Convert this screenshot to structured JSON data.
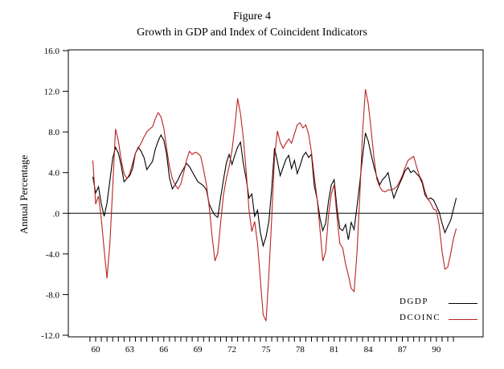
{
  "page": {
    "title": "Figure 4",
    "subtitle": "Growth in GDP and Index of Coincident Indicators"
  },
  "colors": {
    "dgdp_line": "#000000",
    "dcoinc_line": "#bb2222",
    "axis": "#000000",
    "background": "#ffffff"
  },
  "chart_data": {
    "type": "line",
    "title": "Figure 4",
    "subtitle": "Growth in GDP and Index of Coincident Indicators",
    "xlabel": "",
    "ylabel": "Annual Percentage",
    "ylim": [
      -12,
      16
    ],
    "xlim": [
      57.6,
      94.1
    ],
    "grid": false,
    "zero_line": true,
    "frame": "box",
    "y_tick_values": [
      16,
      12,
      8,
      4,
      0,
      -4,
      -8,
      -12
    ],
    "y_tick_labels": [
      "16.0",
      "12.0",
      "8.0",
      "4.0",
      ".0",
      "-4.0",
      "-8.0",
      "-12.0"
    ],
    "x_tick_values": [
      60,
      63,
      66,
      69,
      72,
      75,
      78,
      81,
      84,
      87,
      90
    ],
    "x_tick_labels": [
      "60",
      "63",
      "66",
      "69",
      "72",
      "75",
      "78",
      "81",
      "84",
      "87",
      "90"
    ],
    "x_minor_ticks": {
      "start": 59.5,
      "end": 91.5,
      "step": 0.5
    },
    "legend": {
      "position": "bottom-right-inside",
      "entries": [
        {
          "label": "DGDP",
          "color": "#000000"
        },
        {
          "label": "DCOINC",
          "color": "#bb2222"
        }
      ]
    },
    "x": [
      59.75,
      60.0,
      60.25,
      60.5,
      60.75,
      61.0,
      61.25,
      61.5,
      61.75,
      62.0,
      62.25,
      62.5,
      62.75,
      63.0,
      63.25,
      63.5,
      63.75,
      64.0,
      64.25,
      64.5,
      64.75,
      65.0,
      65.25,
      65.5,
      65.75,
      66.0,
      66.25,
      66.5,
      66.75,
      67.0,
      67.25,
      67.5,
      67.75,
      68.0,
      68.25,
      68.5,
      68.75,
      69.0,
      69.25,
      69.5,
      69.75,
      70.0,
      70.25,
      70.5,
      70.75,
      71.0,
      71.25,
      71.5,
      71.75,
      72.0,
      72.25,
      72.5,
      72.75,
      73.0,
      73.25,
      73.5,
      73.75,
      74.0,
      74.25,
      74.5,
      74.75,
      75.0,
      75.25,
      75.5,
      75.75,
      76.0,
      76.25,
      76.5,
      76.75,
      77.0,
      77.25,
      77.5,
      77.75,
      78.0,
      78.25,
      78.5,
      78.75,
      79.0,
      79.25,
      79.5,
      79.75,
      80.0,
      80.25,
      80.5,
      80.75,
      81.0,
      81.25,
      81.5,
      81.75,
      82.0,
      82.25,
      82.5,
      82.75,
      83.0,
      83.25,
      83.5,
      83.75,
      84.0,
      84.25,
      84.5,
      84.75,
      85.0,
      85.25,
      85.5,
      85.75,
      86.0,
      86.25,
      86.5,
      86.75,
      87.0,
      87.25,
      87.5,
      87.75,
      88.0,
      88.25,
      88.5,
      88.75,
      89.0,
      89.25,
      89.5,
      89.75,
      90.0,
      90.25,
      90.5,
      90.75,
      91.0,
      91.25,
      91.5,
      91.75
    ],
    "series": [
      {
        "name": "DGDP",
        "color": "#000000",
        "values": [
          3.6,
          2.0,
          2.6,
          0.9,
          -0.3,
          1.0,
          3.2,
          5.4,
          6.5,
          5.9,
          4.7,
          3.1,
          3.4,
          3.7,
          4.4,
          5.9,
          6.5,
          6.1,
          5.5,
          4.3,
          4.7,
          5.1,
          6.3,
          7.1,
          7.7,
          7.2,
          5.8,
          3.5,
          2.4,
          2.8,
          3.3,
          3.9,
          4.4,
          4.9,
          4.6,
          4.1,
          3.6,
          3.1,
          2.9,
          2.7,
          2.3,
          0.9,
          0.3,
          -0.2,
          -0.4,
          1.5,
          3.3,
          4.9,
          5.8,
          4.8,
          5.7,
          6.5,
          7.0,
          4.9,
          3.4,
          1.5,
          1.9,
          -0.3,
          0.3,
          -1.9,
          -3.2,
          -2.3,
          -0.8,
          2.4,
          6.4,
          5.1,
          3.7,
          4.5,
          5.3,
          5.7,
          4.4,
          5.2,
          3.9,
          4.7,
          5.6,
          6.0,
          5.5,
          5.8,
          2.7,
          1.4,
          -0.5,
          -1.7,
          -1.0,
          1.2,
          2.8,
          3.3,
          0.4,
          -1.5,
          -1.7,
          -1.1,
          -2.6,
          -0.9,
          -1.6,
          0.6,
          2.9,
          5.6,
          7.9,
          7.1,
          5.8,
          4.6,
          3.6,
          2.8,
          3.3,
          3.6,
          4.0,
          2.6,
          1.5,
          2.2,
          2.9,
          3.5,
          4.2,
          4.5,
          4.0,
          4.2,
          3.9,
          3.6,
          3.0,
          1.8,
          1.4,
          1.5,
          1.3,
          0.7,
          0.1,
          -1.0,
          -1.9,
          -1.3,
          -0.7,
          0.4,
          1.5
        ]
      },
      {
        "name": "DCOINC",
        "color": "#bb2222",
        "values": [
          5.2,
          0.9,
          1.7,
          -0.6,
          -3.6,
          -6.4,
          -3.0,
          2.5,
          8.3,
          7.1,
          5.2,
          3.9,
          3.4,
          3.9,
          4.9,
          5.9,
          6.4,
          6.9,
          7.5,
          8.0,
          8.3,
          8.5,
          9.3,
          9.9,
          9.5,
          8.4,
          6.4,
          4.6,
          3.4,
          2.8,
          2.4,
          2.9,
          4.0,
          5.2,
          6.1,
          5.8,
          6.0,
          5.9,
          5.6,
          4.3,
          2.8,
          0.6,
          -2.2,
          -4.7,
          -3.9,
          -1.0,
          1.8,
          3.4,
          4.6,
          6.2,
          8.5,
          11.3,
          9.8,
          7.4,
          4.2,
          0.3,
          -1.8,
          -0.8,
          -3.0,
          -6.5,
          -10.0,
          -10.6,
          -6.0,
          -0.5,
          5.5,
          8.1,
          7.0,
          6.4,
          6.9,
          7.3,
          6.9,
          7.8,
          8.7,
          8.9,
          8.4,
          8.7,
          7.8,
          6.0,
          3.6,
          1.4,
          -1.6,
          -4.7,
          -3.8,
          -0.2,
          1.9,
          2.8,
          -0.4,
          -3.0,
          -3.4,
          -5.0,
          -6.1,
          -7.4,
          -7.7,
          -4.0,
          1.5,
          8.0,
          12.2,
          10.8,
          8.2,
          5.5,
          3.4,
          2.6,
          2.2,
          2.1,
          2.3,
          2.3,
          2.4,
          2.6,
          3.1,
          3.7,
          4.5,
          5.2,
          5.4,
          5.6,
          4.6,
          3.7,
          3.2,
          2.1,
          1.4,
          1.0,
          0.4,
          0.3,
          -1.2,
          -3.8,
          -5.5,
          -5.3,
          -4.0,
          -2.5,
          -1.5
        ]
      }
    ]
  }
}
